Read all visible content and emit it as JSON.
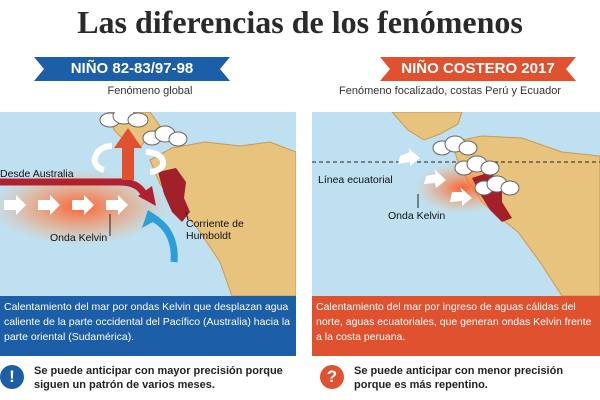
{
  "title": "Las diferencias de los fenómenos",
  "colors": {
    "blue_dark": "#1c5ea8",
    "red_orange": "#e0522f",
    "ocean": "#bfe0f0",
    "land": "#e8c37e",
    "peru": "#a2202a"
  },
  "left": {
    "banner": "NIÑO 82-83/97-98",
    "subtitle": "Fenómeno global",
    "labels": {
      "from_australia": "Desde Australia",
      "kelvin": "Onda Kelvin",
      "humboldt": "Corriente de Humboldt"
    },
    "description": "Calentamiento del mar por ondas Kelvin que desplazan agua caliente de la parte occidental del Pacífico (Australia) hacia la parte oriental (Sudamérica).",
    "note": {
      "icon": "exclamation-icon",
      "symbol": "!",
      "text": "Se puede anticipar con mayor precisión porque siguen un patrón de varios meses."
    }
  },
  "right": {
    "banner": "NIÑO COSTERO 2017",
    "subtitle": "Fenómeno focalizado, costas Perú y Ecuador",
    "labels": {
      "equator": "Línea ecuatorial",
      "kelvin": "Onda Kelvin"
    },
    "description": "Calentamiento del mar por ingreso de aguas cálidas del norte, aguas ecuatoriales, que generan ondas Kelvin frente a la costa peruana.",
    "note": {
      "icon": "question-icon",
      "symbol": "?",
      "text": "Se puede anticipar con menor precisión porque es más repentino."
    }
  }
}
